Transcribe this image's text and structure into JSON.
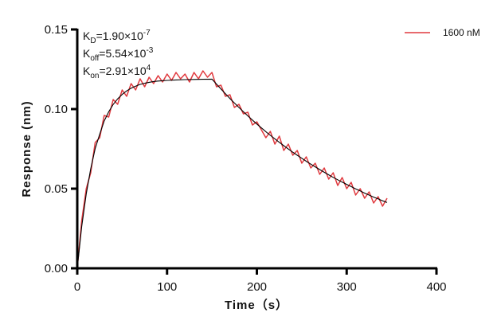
{
  "chart_data": {
    "type": "line",
    "title": "",
    "xlabel": "Time（s）",
    "ylabel": "Response (nm)",
    "xlim": [
      0,
      400
    ],
    "ylim": [
      0,
      0.15
    ],
    "x_ticks": [
      "0",
      "100",
      "200",
      "300",
      "400"
    ],
    "y_ticks": [
      "0.00",
      "0.05",
      "0.10",
      "0.15"
    ],
    "grid": false,
    "legend_placement": "top-right",
    "annotations": [
      {
        "base": "K",
        "sub": "D",
        "rest": "=1.90×10",
        "sup": "-7"
      },
      {
        "base": "K",
        "sub": "off",
        "rest": "=5.54×10",
        "sup": "-3"
      },
      {
        "base": "K",
        "sub": "on",
        "rest": "=2.91×10",
        "sup": "4"
      }
    ],
    "series": [
      {
        "name": "1600 nM",
        "color": "#e0393e",
        "x": [
          0,
          5,
          10,
          15,
          20,
          25,
          30,
          35,
          40,
          45,
          50,
          55,
          60,
          65,
          70,
          75,
          80,
          85,
          90,
          95,
          100,
          105,
          110,
          115,
          120,
          125,
          130,
          135,
          140,
          145,
          150,
          155,
          160,
          165,
          170,
          175,
          180,
          185,
          190,
          195,
          200,
          205,
          210,
          215,
          220,
          225,
          230,
          235,
          240,
          245,
          250,
          255,
          260,
          265,
          270,
          275,
          280,
          285,
          290,
          295,
          300,
          305,
          310,
          315,
          320,
          325,
          330,
          335,
          340,
          345
        ],
        "y": [
          0.0,
          0.03,
          0.05,
          0.06,
          0.079,
          0.082,
          0.096,
          0.095,
          0.106,
          0.103,
          0.112,
          0.108,
          0.116,
          0.112,
          0.119,
          0.114,
          0.12,
          0.116,
          0.121,
          0.117,
          0.122,
          0.118,
          0.123,
          0.119,
          0.122,
          0.117,
          0.123,
          0.119,
          0.124,
          0.12,
          0.123,
          0.114,
          0.115,
          0.108,
          0.109,
          0.101,
          0.103,
          0.097,
          0.098,
          0.09,
          0.092,
          0.087,
          0.082,
          0.086,
          0.078,
          0.083,
          0.074,
          0.078,
          0.071,
          0.074,
          0.066,
          0.07,
          0.063,
          0.066,
          0.059,
          0.063,
          0.056,
          0.06,
          0.052,
          0.057,
          0.05,
          0.054,
          0.046,
          0.05,
          0.044,
          0.048,
          0.041,
          0.045,
          0.039,
          0.044
        ]
      },
      {
        "color": "#000000",
        "x": [
          0,
          5,
          10,
          15,
          20,
          25,
          30,
          35,
          40,
          45,
          50,
          55,
          60,
          65,
          70,
          75,
          80,
          85,
          90,
          95,
          100,
          110,
          120,
          130,
          140,
          150,
          155,
          160,
          165,
          170,
          175,
          180,
          185,
          190,
          195,
          200,
          205,
          210,
          215,
          220,
          225,
          230,
          235,
          240,
          245,
          250,
          255,
          260,
          265,
          270,
          275,
          280,
          285,
          290,
          295,
          300,
          305,
          310,
          315,
          320,
          325,
          330,
          335,
          340,
          345
        ],
        "y": [
          0,
          0.0263,
          0.0468,
          0.0625,
          0.0752,
          0.0842,
          0.0925,
          0.0983,
          0.1029,
          0.1064,
          0.1092,
          0.1114,
          0.1131,
          0.1144,
          0.1155,
          0.1162,
          0.1168,
          0.1173,
          0.1176,
          0.1178,
          0.118,
          0.1183,
          0.1185,
          0.1186,
          0.1187,
          0.1188,
          0.1157,
          0.1126,
          0.1096,
          0.1066,
          0.1038,
          0.101,
          0.0983,
          0.0957,
          0.0931,
          0.0906,
          0.0882,
          0.0858,
          0.0835,
          0.0813,
          0.0791,
          0.077,
          0.0749,
          0.0729,
          0.071,
          0.0691,
          0.0672,
          0.0654,
          0.0637,
          0.062,
          0.0603,
          0.0587,
          0.0571,
          0.0556,
          0.0541,
          0.0527,
          0.0513,
          0.0499,
          0.0486,
          0.0472,
          0.046,
          0.0447,
          0.0436,
          0.0424,
          0.0413
        ]
      }
    ]
  }
}
